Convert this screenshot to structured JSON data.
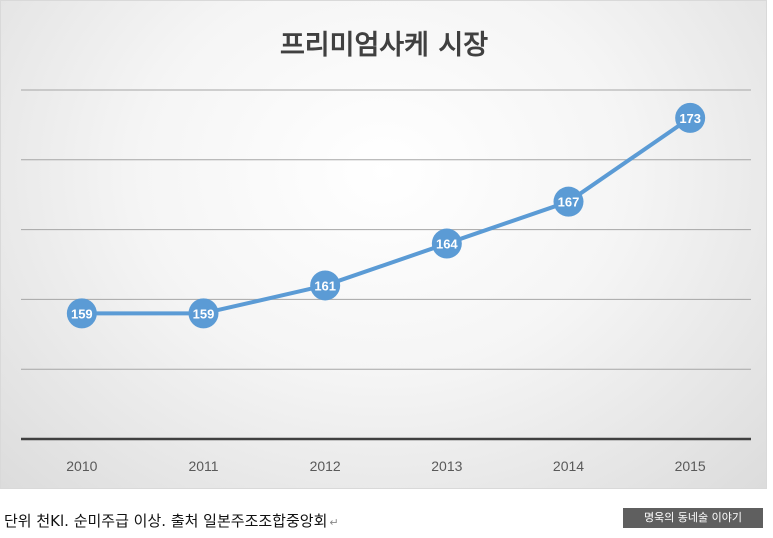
{
  "chart_data": {
    "type": "line",
    "title": "프리미엄사케 시장",
    "categories": [
      "2010",
      "2011",
      "2012",
      "2013",
      "2014",
      "2015"
    ],
    "series": [
      {
        "name": "프리미엄사케 시장",
        "values": [
          159,
          159,
          161,
          164,
          167,
          173
        ]
      }
    ],
    "data_labels": [
      "159",
      "159",
      "161",
      "164",
      "167",
      "173"
    ],
    "xlabel": "",
    "ylabel": "",
    "ylim": [
      150,
      175
    ],
    "grid": true,
    "legend": "none",
    "line_color": "#5b9bd5"
  },
  "caption": {
    "text": "단위 천Kl. 순미주급 이상. 출처 일본주조조합중앙회",
    "mark": "↵"
  },
  "watermark": {
    "text": "명욱의 동네술 이야기"
  }
}
